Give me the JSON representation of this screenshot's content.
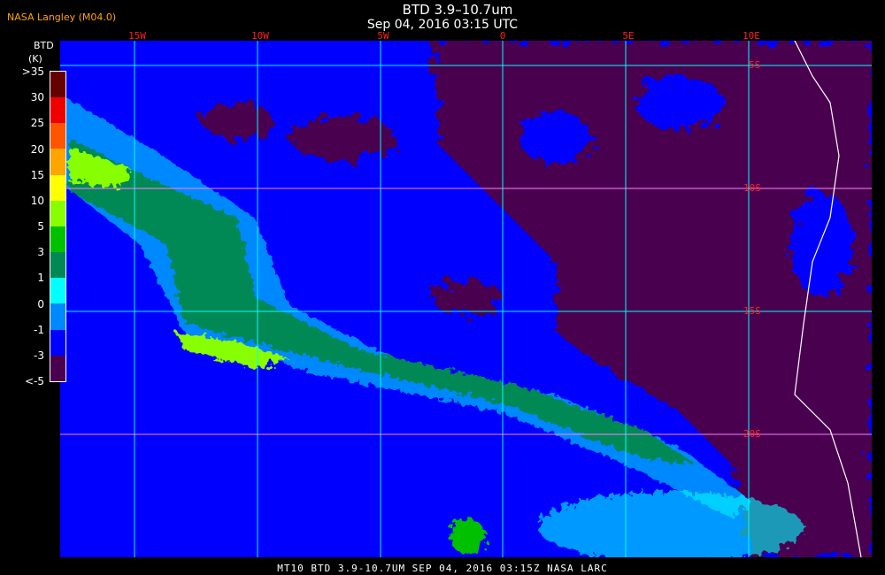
{
  "header": {
    "organization": "NASA Langley (M04.0)",
    "title": "BTD 3.9–10.7um",
    "subtitle": "Sep 04, 2016 03:15 UTC"
  },
  "map": {
    "longitude_labels": [
      "15W",
      "10W",
      "5W",
      "0",
      "5E",
      "10E"
    ],
    "latitude_labels": [
      "5S",
      "10S",
      "15S",
      "20S"
    ],
    "colors": {
      "ocean_base": "#0000ff",
      "negative": "#4a0050",
      "grid": "#00ffff",
      "grid_alt": "#ff80ff",
      "coastline": "#ffffff"
    }
  },
  "colorbar": {
    "title": "BTD",
    "unit": "(K)",
    "labels": [
      ">35",
      "30",
      "25",
      "20",
      "15",
      "10",
      "5",
      "3",
      "1",
      "0",
      "-1",
      "-3",
      "<-5"
    ],
    "colors": [
      "#660000",
      "#ee0000",
      "#ff5500",
      "#ffa500",
      "#ffff00",
      "#88ff00",
      "#00c000",
      "#008855",
      "#00ffff",
      "#0088ff",
      "#0000ff",
      "#4a0050"
    ]
  },
  "footer": {
    "caption": "MT10  BTD 3.9-10.7UM   SEP 04, 2016 03:15Z  NASA LARC"
  }
}
